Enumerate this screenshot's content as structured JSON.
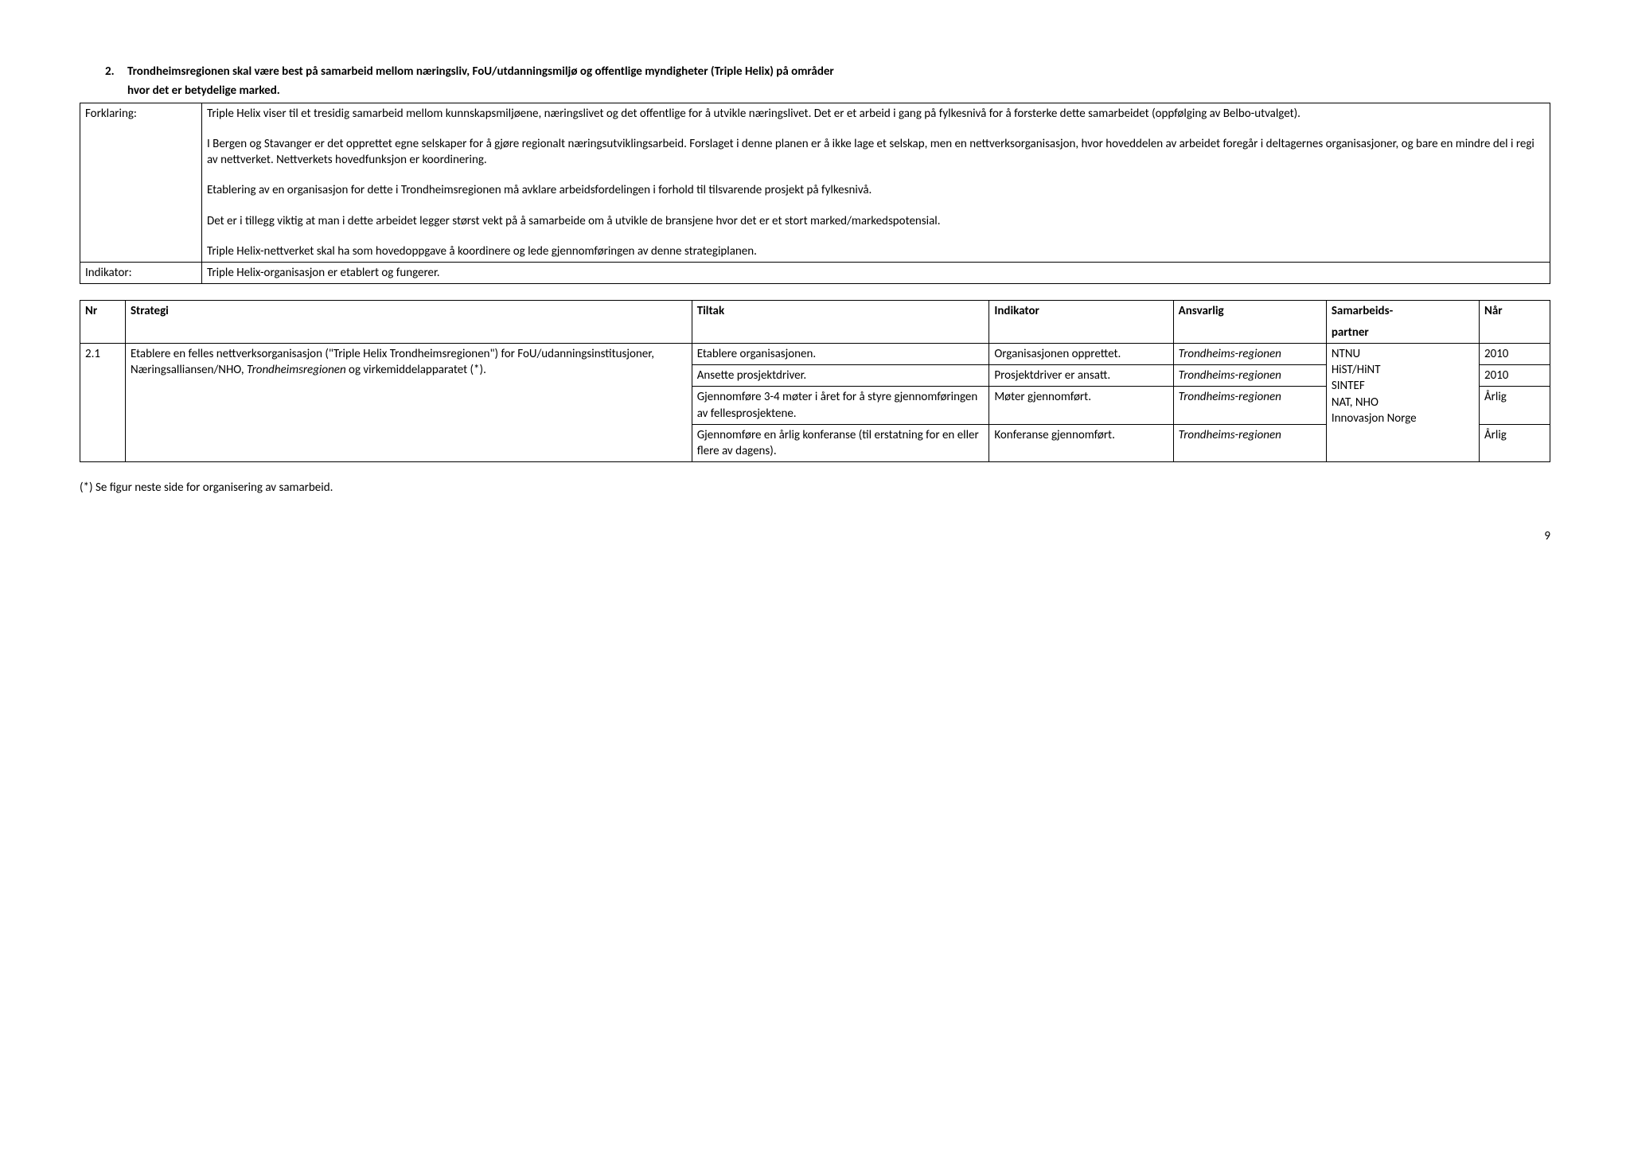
{
  "heading": {
    "number": "2.",
    "text_line1": "Trondheimsregionen skal være best på samarbeid mellom næringsliv, FoU/utdanningsmiljø og offentlige myndigheter (Triple Helix) på områder",
    "text_line2": "hvor det er betydelige marked."
  },
  "info_table": {
    "rows": [
      {
        "label": "Forklaring:",
        "paragraphs": [
          "Triple Helix viser til et tresidig samarbeid mellom kunnskapsmiljøene, næringslivet og det offentlige for å utvikle næringslivet. Det er et arbeid i gang på fylkesnivå for å forsterke dette samarbeidet (oppfølging av Belbo-utvalget).",
          "I Bergen og Stavanger er det opprettet egne selskaper for å gjøre regionalt næringsutviklingsarbeid. Forslaget i denne planen er å ikke lage et selskap, men en nettverksorganisasjon, hvor hoveddelen av arbeidet foregår i deltagernes organisasjoner, og bare en mindre del i regi av nettverket. Nettverkets hovedfunksjon er koordinering.",
          " Etablering av en organisasjon for dette i Trondheimsregionen må avklare arbeidsfordelingen i forhold til tilsvarende prosjekt på fylkesnivå.",
          "Det er i tillegg viktig at man i dette arbeidet legger størst vekt på å samarbeide om å utvikle de bransjene hvor det er et stort marked/markedspotensial.",
          "Triple Helix-nettverket skal ha som hovedoppgave å koordinere og lede gjennomføringen av denne strategiplanen."
        ]
      },
      {
        "label": "Indikator:",
        "paragraphs": [
          "Triple Helix-organisasjon er etablert og fungerer."
        ]
      }
    ]
  },
  "strategy_table": {
    "headers": {
      "nr": "Nr",
      "strategi": "Strategi",
      "tiltak": "Tiltak",
      "indikator": "Indikator",
      "ansvarlig": "Ansvarlig",
      "partner_line1": "Samarbeids-",
      "partner_line2": "partner",
      "nar": "Når"
    },
    "row": {
      "nr": "2.1",
      "strategi_l1": "Etablere en felles nettverksorganisasjon (\"Triple Helix Trondheimsregionen\") for FoU/udanningsinstitusjoner, Næringsalliansen/NHO, ",
      "strategi_italic": "Trondheimsregionen",
      "strategi_l2": " og virkemiddelapparatet (*).",
      "tiltak": [
        "Etablere organisasjonen.",
        "Ansette prosjektdriver.",
        "Gjennomføre 3-4 møter i året for å styre gjennomføringen av fellesprosjektene.",
        "Gjennomføre en årlig konferanse (til erstatning for en eller flere av dagens)."
      ],
      "indikator": [
        "Organisasjonen opprettet.",
        "Prosjektdriver er ansatt.",
        "Møter gjennomført.",
        "Konferanse gjennomført."
      ],
      "ansvarlig_line": "Trondheims-regionen",
      "partner_lines": [
        "NTNU",
        "HiST/HiNT",
        "SINTEF",
        "NAT, NHO",
        "Innovasjon Norge"
      ],
      "nar": [
        "2010",
        "2010",
        "Årlig",
        "Årlig"
      ]
    }
  },
  "footnote": "(*) Se figur neste side for organisering av samarbeid.",
  "page_number": "9"
}
